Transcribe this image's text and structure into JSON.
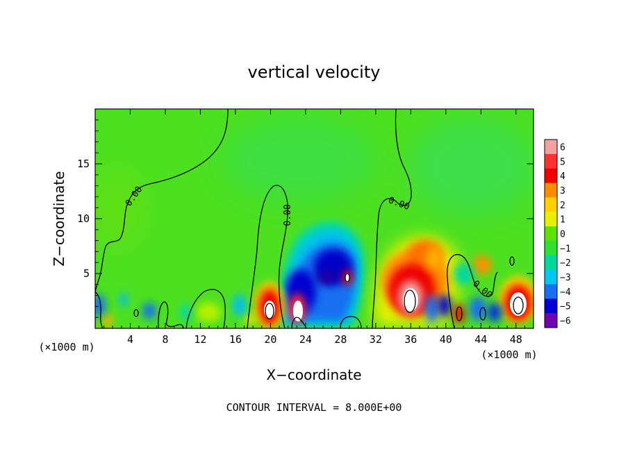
{
  "chart_data": {
    "type": "heatmap",
    "title": "vertical velocity",
    "xlabel": "X−coordinate",
    "ylabel": "Z−coordinate",
    "x_unit": "(×1000 m)",
    "xlim": [
      0,
      50
    ],
    "ylim": [
      0,
      20
    ],
    "x_ticks": [
      4,
      8,
      12,
      16,
      20,
      24,
      28,
      32,
      36,
      40,
      44,
      48
    ],
    "y_ticks": [
      5,
      10,
      15
    ],
    "colorbar": {
      "levels": [
        6,
        5,
        4,
        3,
        2,
        1,
        0,
        -1,
        -2,
        -3,
        -4,
        -5,
        -6
      ],
      "tick_labels": [
        "6",
        "5",
        "4",
        "3",
        "2",
        "1",
        "0",
        "−1",
        "−2",
        "−3",
        "−4",
        "−5",
        "−6"
      ],
      "colors": [
        "#f4a0a0",
        "#ff3030",
        "#f00000",
        "#ff8c00",
        "#ffd000",
        "#e8f000",
        "#60e000",
        "#30e030",
        "#00d8a0",
        "#00c8f0",
        "#1870f0",
        "#0000d0",
        "#7000b0"
      ]
    },
    "contour_label": "0.00",
    "features": [
      {
        "x": 19.5,
        "z": 2.0,
        "sign": "positive",
        "peak": 6
      },
      {
        "x": 23.0,
        "z": 2.0,
        "sign": "positive",
        "peak": 6
      },
      {
        "x": 24.5,
        "z": 4.5,
        "sign": "negative",
        "peak": -5
      },
      {
        "x": 28.0,
        "z": 5.5,
        "sign": "negative",
        "peak": -5
      },
      {
        "x": 29.5,
        "z": 4.5,
        "sign": "positive",
        "peak": 6
      },
      {
        "x": 35.5,
        "z": 3.0,
        "sign": "positive",
        "peak": 6
      },
      {
        "x": 37.5,
        "z": 7.0,
        "sign": "positive",
        "peak": 3
      },
      {
        "x": 48.0,
        "z": 2.5,
        "sign": "positive",
        "peak": 6
      },
      {
        "x": 41.5,
        "z": 1.0,
        "sign": "positive",
        "peak": 4
      },
      {
        "x": 45.0,
        "z": 6.0,
        "sign": "positive",
        "peak": 2
      },
      {
        "x": 1.0,
        "z": 2.0,
        "sign": "negative",
        "peak": -3
      },
      {
        "x": 6.0,
        "z": 1.5,
        "sign": "negative",
        "peak": -3
      },
      {
        "x": 12.5,
        "z": 1.5,
        "sign": "positive",
        "peak": 1
      },
      {
        "x": 17.0,
        "z": 2.0,
        "sign": "negative",
        "peak": -2
      },
      {
        "x": 39.5,
        "z": 1.5,
        "sign": "negative",
        "peak": -4
      },
      {
        "x": 43.0,
        "z": 2.0,
        "sign": "negative",
        "peak": -3
      },
      {
        "x": 45.5,
        "z": 1.5,
        "sign": "negative",
        "peak": -3
      }
    ]
  },
  "footer": "CONTOUR INTERVAL = 8.000E+00"
}
